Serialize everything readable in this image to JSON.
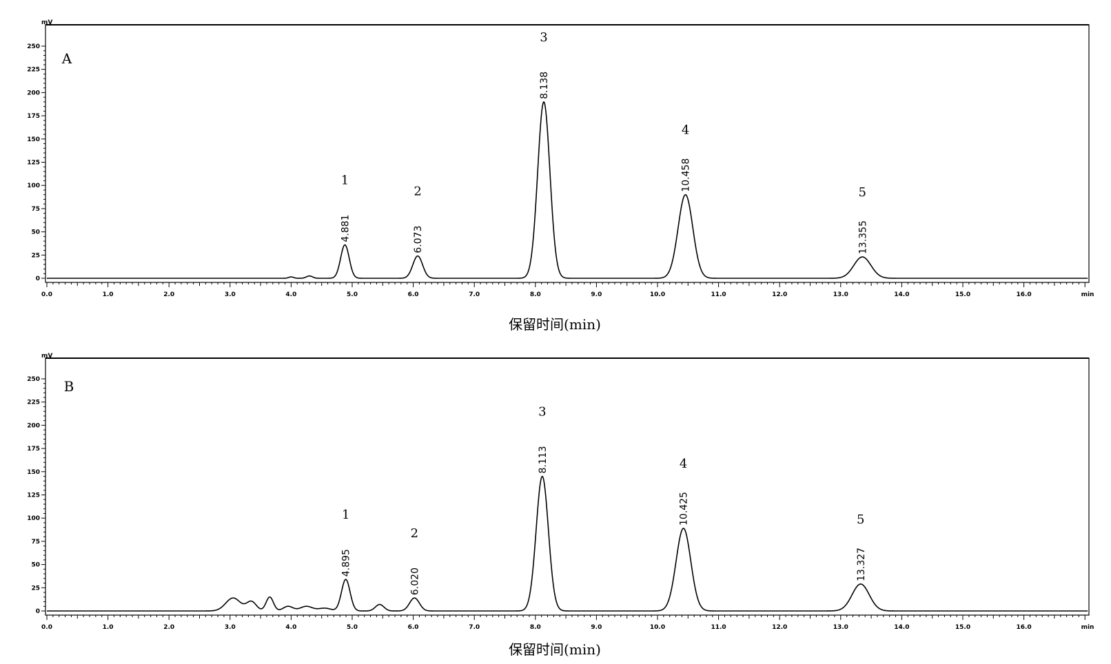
{
  "chart_data": [
    {
      "type": "line",
      "panel": "A",
      "y_unit": "mV",
      "x_unit": "min",
      "xlabel": "保留时间(min)",
      "xlim": [
        0,
        17
      ],
      "ylim": [
        -5,
        265
      ],
      "x_ticks": [
        "0.0",
        "1.0",
        "2.0",
        "3.0",
        "4.0",
        "5.0",
        "6.0",
        "7.0",
        "8.0",
        "9.0",
        "10.0",
        "11.0",
        "12.0",
        "13.0",
        "14.0",
        "15.0",
        "16.0"
      ],
      "y_ticks": [
        "0",
        "25",
        "50",
        "75",
        "100",
        "125",
        "150",
        "175",
        "200",
        "225",
        "250"
      ],
      "peaks": [
        {
          "number": "1",
          "retention_time": "4.881",
          "rt": 4.881,
          "height": 36,
          "width": 0.07
        },
        {
          "number": "2",
          "retention_time": "6.073",
          "rt": 6.073,
          "height": 24,
          "width": 0.08
        },
        {
          "number": "3",
          "retention_time": "8.138",
          "rt": 8.138,
          "height": 190,
          "width": 0.1
        },
        {
          "number": "4",
          "retention_time": "10.458",
          "rt": 10.458,
          "height": 90,
          "width": 0.12
        },
        {
          "number": "5",
          "retention_time": "13.355",
          "rt": 13.355,
          "height": 23,
          "width": 0.14
        }
      ],
      "minor_peaks": [
        {
          "rt": 4.0,
          "height": 1.5,
          "width": 0.04
        },
        {
          "rt": 4.3,
          "height": 2.5,
          "width": 0.05
        }
      ]
    },
    {
      "type": "line",
      "panel": "B",
      "y_unit": "mV",
      "x_unit": "min",
      "xlabel": "保留时间(min)",
      "xlim": [
        0,
        17
      ],
      "ylim": [
        -5,
        265
      ],
      "x_ticks": [
        "0.0",
        "1.0",
        "2.0",
        "3.0",
        "4.0",
        "5.0",
        "6.0",
        "7.0",
        "8.0",
        "9.0",
        "10.0",
        "11.0",
        "12.0",
        "13.0",
        "14.0",
        "15.0",
        "16.0"
      ],
      "y_ticks": [
        "0",
        "25",
        "50",
        "75",
        "100",
        "125",
        "150",
        "175",
        "200",
        "225",
        "250"
      ],
      "peaks": [
        {
          "number": "1",
          "retention_time": "4.895",
          "rt": 4.895,
          "height": 34,
          "width": 0.07
        },
        {
          "number": "2",
          "retention_time": "6.020",
          "rt": 6.02,
          "height": 14,
          "width": 0.08
        },
        {
          "number": "3",
          "retention_time": "8.113",
          "rt": 8.113,
          "height": 145,
          "width": 0.1
        },
        {
          "number": "4",
          "retention_time": "10.425",
          "rt": 10.425,
          "height": 89,
          "width": 0.12
        },
        {
          "number": "5",
          "retention_time": "13.327",
          "rt": 13.327,
          "height": 29,
          "width": 0.14
        }
      ],
      "minor_peaks": [
        {
          "rt": 3.05,
          "height": 14,
          "width": 0.12
        },
        {
          "rt": 3.35,
          "height": 10,
          "width": 0.08
        },
        {
          "rt": 3.65,
          "height": 15,
          "width": 0.06
        },
        {
          "rt": 3.95,
          "height": 5,
          "width": 0.08
        },
        {
          "rt": 4.25,
          "height": 5,
          "width": 0.1
        },
        {
          "rt": 4.55,
          "height": 3,
          "width": 0.1
        },
        {
          "rt": 5.45,
          "height": 7,
          "width": 0.07
        }
      ]
    }
  ]
}
